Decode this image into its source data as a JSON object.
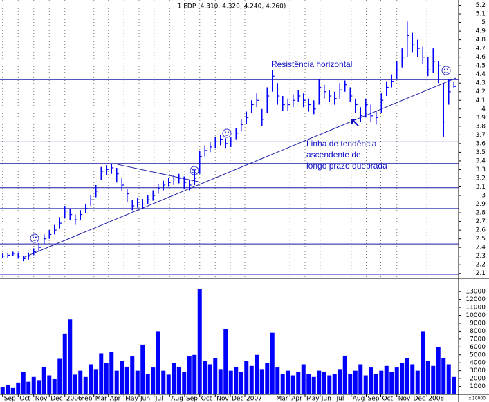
{
  "chart_data": [
    {
      "type": "hlc",
      "title": "1 EDP (4.310, 4.320, 4.240, 4.260)",
      "color": "#0000ff",
      "line_color": "#1a1aa8",
      "x": [
        0,
        1,
        2,
        3,
        4,
        5,
        6,
        7,
        8,
        9,
        10,
        11,
        12,
        13,
        14,
        15,
        16,
        17,
        18,
        19,
        20,
        21,
        22,
        23,
        24,
        25,
        26,
        27,
        28,
        29,
        30,
        31,
        32,
        33,
        34,
        35,
        36,
        37,
        38,
        39,
        40,
        41,
        42,
        43,
        44,
        45,
        46,
        47,
        48,
        49,
        50,
        51,
        52,
        53,
        54,
        55,
        56,
        57,
        58,
        59,
        60,
        61,
        62,
        63,
        64,
        65,
        66,
        67,
        68,
        69,
        70,
        71,
        72,
        73,
        74,
        75,
        76,
        77,
        78,
        79,
        80,
        81,
        82,
        83,
        84,
        85,
        86,
        87
      ],
      "high": [
        2.33,
        2.34,
        2.35,
        2.34,
        2.3,
        2.34,
        2.39,
        2.45,
        2.55,
        2.6,
        2.66,
        2.75,
        2.88,
        2.85,
        2.78,
        2.83,
        2.9,
        3.0,
        3.12,
        3.33,
        3.35,
        3.36,
        3.32,
        3.2,
        3.08,
        2.95,
        2.97,
        2.96,
        3.0,
        3.06,
        3.13,
        3.17,
        3.2,
        3.23,
        3.25,
        3.22,
        3.18,
        3.3,
        3.52,
        3.58,
        3.62,
        3.68,
        3.7,
        3.66,
        3.67,
        3.78,
        3.88,
        3.97,
        4.1,
        4.18,
        4.0,
        4.25,
        4.45,
        4.3,
        4.15,
        4.12,
        4.17,
        4.22,
        4.18,
        4.12,
        4.1,
        4.35,
        4.28,
        4.22,
        4.2,
        4.3,
        4.33,
        4.25,
        4.12,
        4.02,
        4.12,
        4.05,
        3.98,
        4.18,
        4.32,
        4.4,
        4.55,
        4.7,
        5.01,
        4.88,
        4.8,
        4.72,
        4.6,
        4.7,
        4.55,
        4.3,
        4.35,
        4.32
      ],
      "low": [
        2.28,
        2.28,
        2.3,
        2.27,
        2.24,
        2.26,
        2.31,
        2.36,
        2.44,
        2.5,
        2.55,
        2.62,
        2.74,
        2.72,
        2.66,
        2.72,
        2.8,
        2.88,
        2.98,
        3.18,
        3.24,
        3.25,
        3.15,
        3.05,
        2.92,
        2.83,
        2.86,
        2.84,
        2.9,
        2.94,
        3.02,
        3.06,
        3.1,
        3.12,
        3.14,
        3.08,
        3.06,
        3.12,
        3.25,
        3.45,
        3.5,
        3.55,
        3.58,
        3.55,
        3.56,
        3.65,
        3.74,
        3.83,
        3.95,
        4.02,
        3.8,
        3.95,
        4.2,
        4.05,
        3.98,
        3.98,
        4.02,
        4.08,
        4.02,
        3.97,
        3.94,
        4.05,
        4.12,
        4.08,
        4.05,
        4.12,
        4.2,
        4.08,
        3.95,
        3.85,
        3.9,
        3.85,
        3.82,
        3.95,
        4.15,
        4.25,
        4.35,
        4.48,
        4.6,
        4.65,
        4.6,
        4.52,
        4.38,
        4.42,
        4.3,
        3.68,
        4.05,
        4.24
      ],
      "close": [
        2.3,
        2.31,
        2.33,
        2.3,
        2.27,
        2.3,
        2.35,
        2.4,
        2.5,
        2.55,
        2.6,
        2.68,
        2.82,
        2.78,
        2.72,
        2.78,
        2.85,
        2.95,
        3.05,
        3.28,
        3.3,
        3.32,
        3.25,
        3.12,
        3.02,
        2.88,
        2.92,
        2.9,
        2.95,
        3.0,
        3.08,
        3.12,
        3.15,
        3.18,
        3.2,
        3.15,
        3.12,
        3.2,
        3.45,
        3.52,
        3.56,
        3.62,
        3.65,
        3.6,
        3.62,
        3.72,
        3.82,
        3.9,
        4.05,
        4.1,
        3.88,
        4.15,
        4.38,
        4.15,
        4.05,
        4.05,
        4.1,
        4.15,
        4.1,
        4.05,
        4.0,
        4.25,
        4.2,
        4.15,
        4.12,
        4.22,
        4.28,
        4.15,
        4.05,
        3.92,
        4.05,
        3.92,
        3.9,
        4.1,
        4.25,
        4.32,
        4.45,
        4.6,
        4.85,
        4.75,
        4.7,
        4.6,
        4.45,
        4.55,
        4.5,
        3.85,
        4.2,
        4.26
      ],
      "xlim": [
        -0.5,
        87.9
      ],
      "xticks": [
        {
          "value": 0.0,
          "label": "Sep"
        },
        {
          "value": 3.0,
          "label": "Oct"
        },
        {
          "value": 6.0,
          "label": "Nov"
        },
        {
          "value": 9.0,
          "label": "Dec"
        },
        {
          "value": 12.0,
          "label": "2006"
        },
        {
          "value": 14.9,
          "label": "Feb"
        },
        {
          "value": 17.6,
          "label": "Mar"
        },
        {
          "value": 20.4,
          "label": "Apr"
        },
        {
          "value": 23.4,
          "label": "May"
        },
        {
          "value": 26.3,
          "label": "Jun"
        },
        {
          "value": 29.2,
          "label": "Jul"
        },
        {
          "value": 32.2,
          "label": "Aug"
        },
        {
          "value": 35.1,
          "label": "Sep"
        },
        {
          "value": 38.0,
          "label": "Oct"
        },
        {
          "value": 41.0,
          "label": "Nov"
        },
        {
          "value": 43.9,
          "label": "Dec"
        },
        {
          "value": 46.7,
          "label": "2007"
        },
        {
          "value": 52.5,
          "label": "Mar"
        },
        {
          "value": 55.4,
          "label": "Apr"
        },
        {
          "value": 58.3,
          "label": "May"
        },
        {
          "value": 61.2,
          "label": "Jun"
        },
        {
          "value": 64.1,
          "label": "Jul"
        },
        {
          "value": 67.2,
          "label": "Aug"
        },
        {
          "value": 70.1,
          "label": "Sep"
        },
        {
          "value": 72.9,
          "label": "Oct"
        },
        {
          "value": 76.0,
          "label": "Nov"
        },
        {
          "value": 78.9,
          "label": "Dec"
        },
        {
          "value": 81.8,
          "label": "2008"
        }
      ],
      "ylim": [
        2.05,
        5.26
      ],
      "yticks": [
        2.1,
        2.2,
        2.3,
        2.4,
        2.5,
        2.6,
        2.7,
        2.8,
        2.9,
        3,
        3.1,
        3.2,
        3.3,
        3.4,
        3.5,
        3.6,
        3.7,
        3.8,
        3.9,
        4,
        4.1,
        4.2,
        4.3,
        4.4,
        4.5,
        4.6,
        4.7,
        4.8,
        4.9,
        5,
        5.1,
        5.2
      ],
      "hlines": [
        4.34,
        3.62,
        3.37,
        3.09,
        2.85,
        2.44,
        2.09
      ],
      "lines": [
        {
          "x": [
            3.9,
            87.5
          ],
          "y": [
            2.28,
            4.36
          ]
        },
        {
          "x": [
            22.1,
            37.7
          ],
          "y": [
            3.36,
            3.16
          ]
        }
      ],
      "annotations": [
        "Resistência horizontal",
        "Linha de tendência",
        "ascendente de",
        "longo prazo quebrada"
      ],
      "grid": true
    },
    {
      "type": "bar",
      "color": "#0000ff",
      "unit_label": "x 10000",
      "x": [
        0,
        1,
        2,
        3,
        4,
        5,
        6,
        7,
        8,
        9,
        10,
        11,
        12,
        13,
        14,
        15,
        16,
        17,
        18,
        19,
        20,
        21,
        22,
        23,
        24,
        25,
        26,
        27,
        28,
        29,
        30,
        31,
        32,
        33,
        34,
        35,
        36,
        37,
        38,
        39,
        40,
        41,
        42,
        43,
        44,
        45,
        46,
        47,
        48,
        49,
        50,
        51,
        52,
        53,
        54,
        55,
        56,
        57,
        58,
        59,
        60,
        61,
        62,
        63,
        64,
        65,
        66,
        67,
        68,
        69,
        70,
        71,
        72,
        73,
        74,
        75,
        76,
        77,
        78,
        79,
        80,
        81,
        82,
        83,
        84,
        85,
        86,
        87
      ],
      "values": [
        900,
        1200,
        800,
        1500,
        2800,
        1600,
        2200,
        1800,
        3500,
        2400,
        2000,
        4500,
        7700,
        9500,
        2500,
        3000,
        2200,
        3800,
        3200,
        5200,
        4000,
        5400,
        3000,
        4200,
        3500,
        4800,
        3000,
        6300,
        2600,
        3400,
        8000,
        3000,
        2500,
        4000,
        3500,
        2800,
        4800,
        5000,
        13300,
        4200,
        3800,
        4600,
        3200,
        8300,
        3000,
        3500,
        2800,
        4200,
        3600,
        5000,
        3200,
        4000,
        7800,
        3400,
        2600,
        3000,
        2400,
        2800,
        3800,
        2600,
        2200,
        3000,
        2800,
        2400,
        2600,
        3200,
        4900,
        2600,
        3000,
        3800,
        2400,
        3400,
        2600,
        3000,
        3600,
        2800,
        3400,
        4000,
        4600,
        3800,
        3000,
        8000,
        4200,
        3600,
        6000,
        4600,
        3800,
        2200
      ],
      "xlim": [
        -0.5,
        87.9
      ],
      "ylim": [
        0,
        14500
      ],
      "yticks": [
        1000,
        2000,
        3000,
        4000,
        5000,
        6000,
        7000,
        8000,
        9000,
        10000,
        11000,
        12000,
        13000
      ]
    }
  ]
}
